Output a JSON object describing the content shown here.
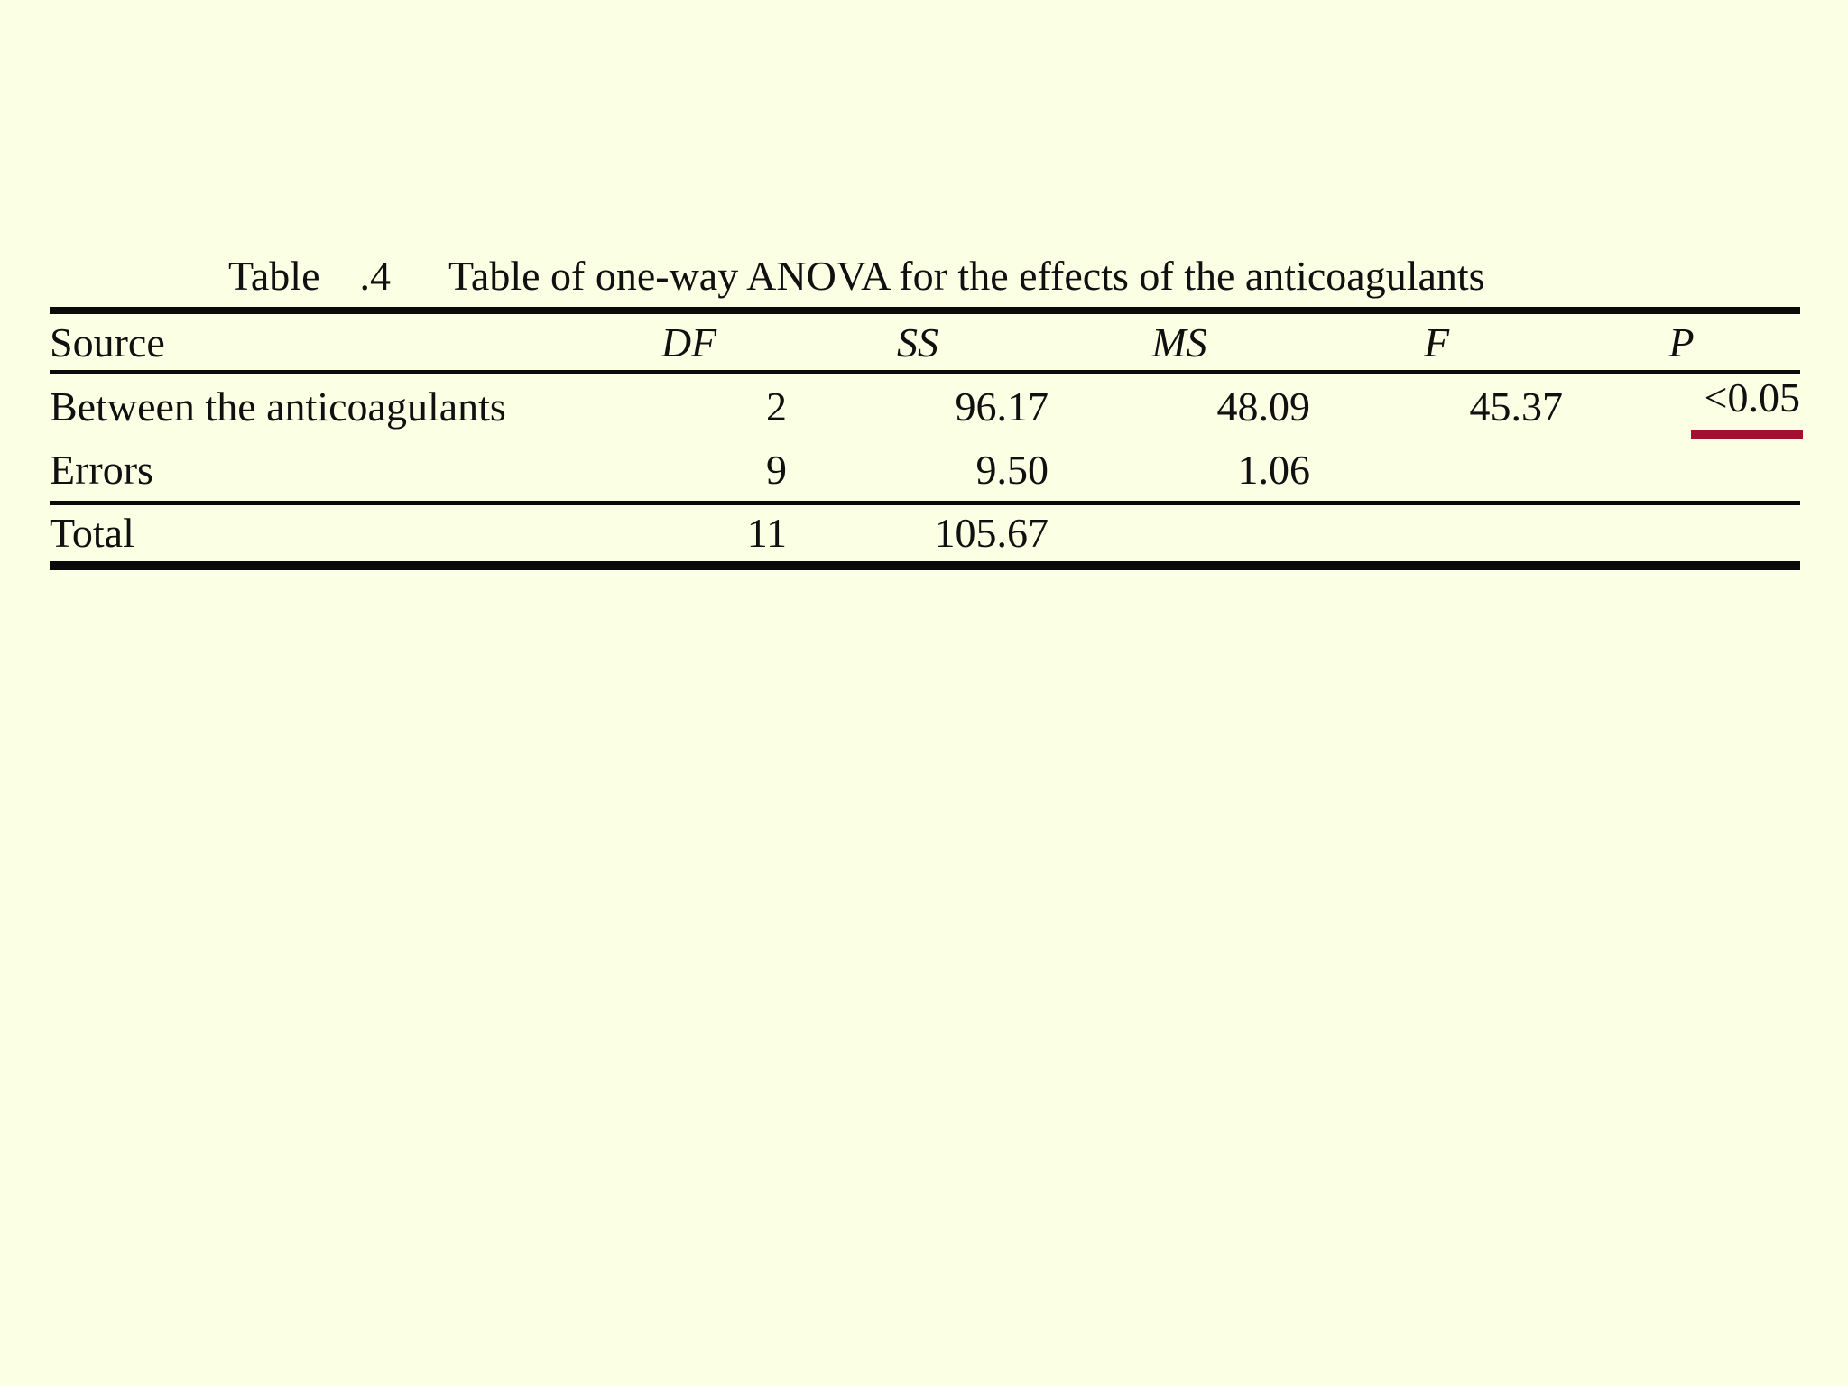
{
  "slide": {
    "caption": {
      "word": "Table",
      "number": ".4",
      "text": "Table of one-way ANOVA for the effects of the anticoagulants"
    },
    "table": {
      "headers": [
        "Source",
        "DF",
        "SS",
        "MS",
        "F",
        "P"
      ],
      "rows": [
        {
          "source": "Between the anticoagulants",
          "df": "2",
          "ss": "96.17",
          "ms": "48.09",
          "f": "45.37",
          "p": "<0.05"
        },
        {
          "source": "Errors",
          "df": "9",
          "ss": "9.50",
          "ms": "1.06",
          "f": "",
          "p": ""
        },
        {
          "source": "Total",
          "df": "11",
          "ss": "105.67",
          "ms": "",
          "f": "",
          "p": ""
        }
      ],
      "highlighted_value": "<0.05"
    },
    "colors": {
      "background": "#FBFFE3",
      "text": "#101010",
      "rule": "#0A0A0A",
      "highlight_underline": "#A60D33"
    }
  }
}
